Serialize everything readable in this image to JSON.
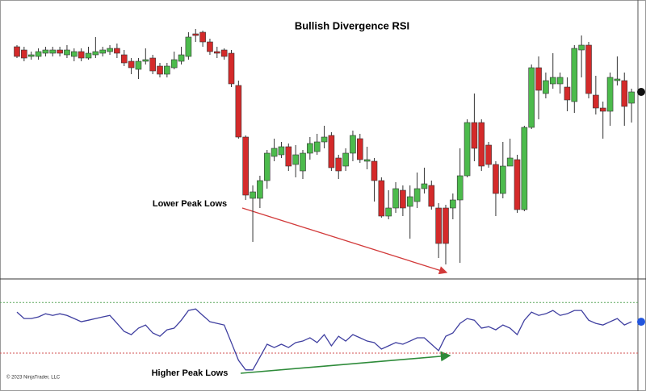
{
  "chart_data": [
    {
      "type": "candlestick",
      "title": "Bullish Divergence RSI",
      "annotations": [
        "Lower Peak Lows"
      ],
      "up_color": "#4cbb4c",
      "down_color": "#d42a2a",
      "ylim": [
        0,
        345
      ],
      "open": [
        287,
        283,
        275,
        275,
        279,
        279,
        283,
        277,
        275,
        281,
        273,
        277,
        279,
        281,
        285,
        277,
        269,
        259,
        269,
        273,
        263,
        253,
        261,
        269,
        275,
        303,
        305,
        293,
        281,
        283,
        279,
        239,
        175,
        99,
        99,
        121,
        151,
        153,
        163,
        141,
        133,
        155,
        157,
        169,
        177,
        149,
        139,
        155,
        173,
        145,
        145,
        121,
        77,
        87,
        109,
        89,
        95,
        111,
        115,
        87,
        87,
        87,
        97,
        127,
        193,
        193,
        165,
        141,
        105,
        139,
        147,
        85,
        187,
        261,
        229,
        241,
        241,
        237,
        219,
        283,
        289,
        227,
        211,
        207,
        245,
        245,
        217
      ],
      "high": [
        289,
        287,
        281,
        285,
        287,
        287,
        287,
        289,
        285,
        285,
        287,
        299,
        287,
        289,
        291,
        283,
        273,
        273,
        285,
        277,
        267,
        267,
        281,
        287,
        305,
        309,
        307,
        297,
        287,
        285,
        283,
        245,
        177,
        115,
        127,
        159,
        173,
        169,
        167,
        165,
        159,
        175,
        179,
        189,
        181,
        153,
        161,
        183,
        179,
        163,
        149,
        125,
        109,
        119,
        115,
        115,
        131,
        137,
        121,
        93,
        91,
        105,
        161,
        197,
        229,
        197,
        169,
        145,
        169,
        173,
        153,
        189,
        265,
        275,
        255,
        279,
        255,
        249,
        289,
        301,
        293,
        251,
        219,
        255,
        275,
        255,
        235
      ],
      "low": [
        273,
        269,
        271,
        271,
        275,
        275,
        275,
        273,
        269,
        269,
        271,
        273,
        275,
        277,
        273,
        263,
        253,
        247,
        265,
        253,
        249,
        249,
        259,
        265,
        271,
        293,
        287,
        277,
        273,
        271,
        237,
        173,
        97,
        45,
        87,
        111,
        145,
        149,
        133,
        125,
        123,
        147,
        153,
        161,
        133,
        123,
        133,
        145,
        143,
        135,
        95,
        75,
        73,
        81,
        77,
        49,
        87,
        105,
        85,
        25,
        17,
        73,
        19,
        125,
        145,
        133,
        137,
        77,
        99,
        139,
        81,
        83,
        185,
        197,
        223,
        235,
        229,
        207,
        205,
        249,
        223,
        203,
        173,
        189,
        239,
        189,
        193
      ],
      "close": [
        275,
        273,
        277,
        281,
        283,
        283,
        279,
        283,
        281,
        273,
        279,
        281,
        283,
        285,
        279,
        267,
        261,
        269,
        271,
        257,
        253,
        263,
        271,
        277,
        299,
        301,
        293,
        281,
        279,
        275,
        241,
        175,
        103,
        107,
        121,
        155,
        161,
        163,
        139,
        153,
        155,
        167,
        169,
        175,
        137,
        133,
        155,
        177,
        147,
        147,
        121,
        77,
        87,
        111,
        87,
        101,
        111,
        117,
        89,
        43,
        43,
        97,
        127,
        193,
        161,
        139,
        141,
        105,
        139,
        149,
        85,
        187,
        261,
        233,
        245,
        249,
        249,
        221,
        285,
        289,
        229,
        211,
        207,
        249,
        247,
        213,
        231
      ]
    },
    {
      "type": "line",
      "annotations": [
        "Higher Peak Lows"
      ],
      "color": "#3f3fa0",
      "ylim": [
        0,
        88
      ],
      "levels": [
        {
          "value": 70,
          "color": "#5aa55a"
        },
        {
          "value": 30,
          "color": "#d05050"
        }
      ],
      "values": [
        62.4,
        57.3,
        57.3,
        58.6,
        61.1,
        59.8,
        61.1,
        59.8,
        57.3,
        54.8,
        56.0,
        57.3,
        58.6,
        59.8,
        53.5,
        47.1,
        44.6,
        49.7,
        52.2,
        45.9,
        43.3,
        48.4,
        49.7,
        56.0,
        63.7,
        64.9,
        59.8,
        54.8,
        53.5,
        52.2,
        38.3,
        24.3,
        16.7,
        16.7,
        26.8,
        37.0,
        34.4,
        37.0,
        34.4,
        38.3,
        39.5,
        42.1,
        38.3,
        44.6,
        35.7,
        43.3,
        39.5,
        44.6,
        42.1,
        39.5,
        38.3,
        33.2,
        35.7,
        38.3,
        37.0,
        39.5,
        42.1,
        42.1,
        37.0,
        31.9,
        43.3,
        45.9,
        53.5,
        57.3,
        56.0,
        49.7,
        50.9,
        48.4,
        52.2,
        49.7,
        44.6,
        56.0,
        62.4,
        59.8,
        61.1,
        63.7,
        59.8,
        61.1,
        63.7,
        63.7,
        56.0,
        53.5,
        52.2,
        54.8,
        57.3,
        52.2,
        54.8
      ]
    }
  ],
  "copyright": "© 2023 NinjaTrader, LLC"
}
